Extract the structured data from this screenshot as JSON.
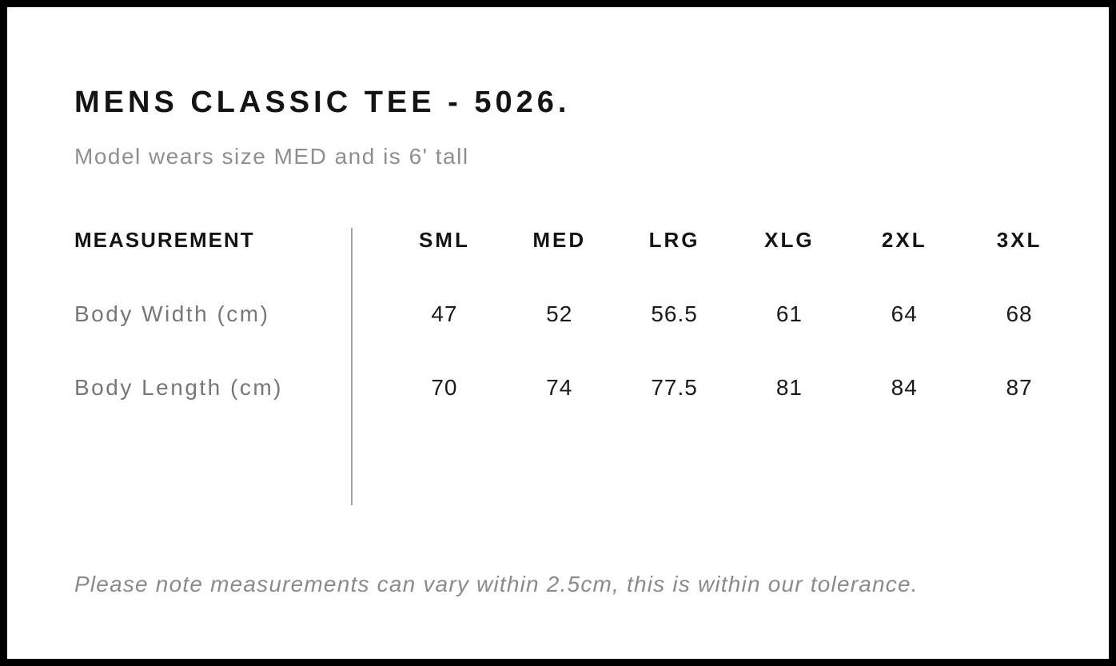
{
  "product": {
    "title": "MENS CLASSIC TEE - 5026.",
    "subtitle": "Model wears size MED and is 6' tall"
  },
  "size_chart": {
    "measurement_header": "MEASUREMENT",
    "size_columns": [
      "SML",
      "MED",
      "LRG",
      "XLG",
      "2XL",
      "3XL"
    ],
    "rows": [
      {
        "label": "Body Width (cm)",
        "values": [
          "47",
          "52",
          "56.5",
          "61",
          "64",
          "68"
        ]
      },
      {
        "label": "Body Length (cm)",
        "values": [
          "70",
          "74",
          "77.5",
          "81",
          "84",
          "87"
        ]
      }
    ]
  },
  "footer": {
    "note": "Please note measurements can vary within 2.5cm, this is within our tolerance."
  },
  "colors": {
    "frame": "#000000",
    "heading_text": "#141414",
    "subtitle_text": "#8f8f8f",
    "row_label_text": "#777777",
    "note_text": "#8a8a8a",
    "divider": "#a3a3a3",
    "background": "#ffffff"
  }
}
